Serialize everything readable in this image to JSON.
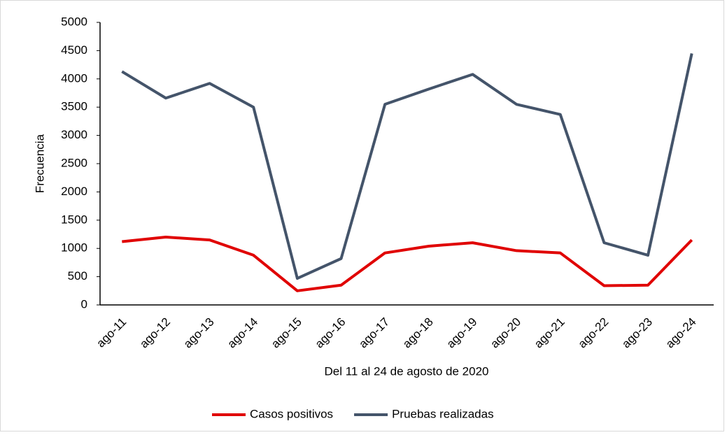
{
  "chart_data": {
    "type": "line",
    "x_label": "Del 11 al 24 de agosto de 2020",
    "y_label": "Frecuencia",
    "categories": [
      "ago-11",
      "ago-12",
      "ago-13",
      "ago-14",
      "ago-15",
      "ago-16",
      "ago-17",
      "ago-18",
      "ago-19",
      "ago-20",
      "ago-21",
      "ago-22",
      "ago-23",
      "ago-24"
    ],
    "series": [
      {
        "name": "Casos positivos",
        "color": "#e00000",
        "values": [
          1120,
          1200,
          1150,
          880,
          250,
          350,
          920,
          1040,
          1100,
          960,
          920,
          340,
          350,
          1150
        ]
      },
      {
        "name": "Pruebas realizadas",
        "color": "#44546a",
        "values": [
          4130,
          3660,
          3920,
          3500,
          470,
          820,
          3550,
          3820,
          4080,
          3550,
          3370,
          1100,
          880,
          4450
        ]
      }
    ],
    "ylim": [
      0,
      5000
    ],
    "yticks": [
      0,
      500,
      1000,
      1500,
      2000,
      2500,
      3000,
      3500,
      4000,
      4500,
      5000
    ],
    "grid": false,
    "legend": "bottom"
  }
}
